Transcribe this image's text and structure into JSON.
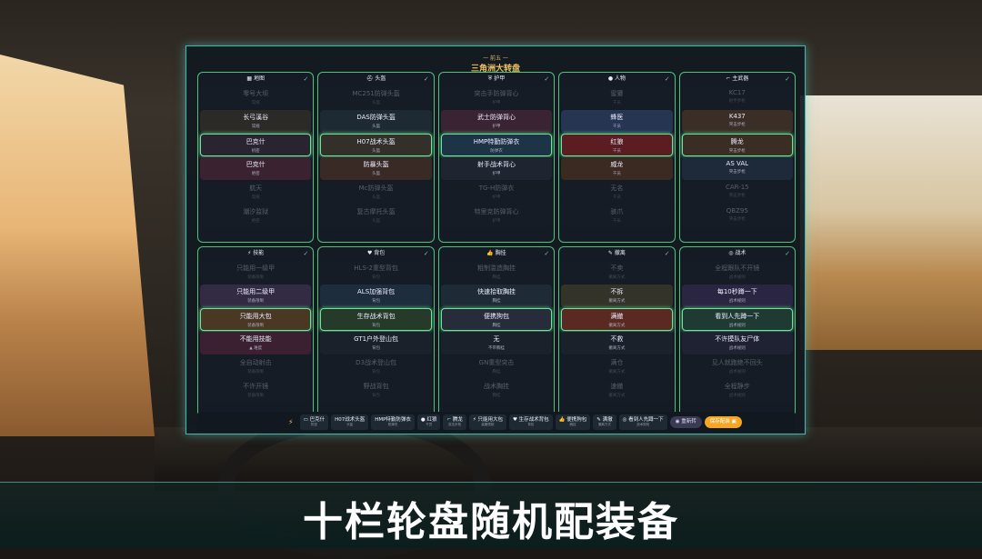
{
  "header": {
    "subtitle": "一 前五 一",
    "title": "三角洲大转盘"
  },
  "columns": [
    {
      "label": "▦ 地图",
      "items": [
        [
          "零号大坝",
          "常规"
        ],
        [
          "长弓溪谷",
          "常规"
        ],
        [
          "巴克什",
          "机密"
        ],
        [
          "巴克什",
          "绝密"
        ],
        [
          "航天",
          "常规"
        ],
        [
          "潮汐监狱",
          "绝密"
        ]
      ],
      "colors": [
        "#1a212b",
        "#2b2a26",
        "#2a2430",
        "#3a2230",
        "#1a212b",
        "#1a212b"
      ]
    },
    {
      "label": "⛑ 头盔",
      "items": [
        [
          "MC251防弹头盔",
          "头盔"
        ],
        [
          "DAS防弹头盔",
          "头盔"
        ],
        [
          "H07战术头盔",
          "头盔"
        ],
        [
          "防暴头盔",
          "头盔"
        ],
        [
          "Mc防弹头盔",
          "头盔"
        ],
        [
          "复古摩托头盔",
          "头盔"
        ]
      ],
      "colors": [
        "#1a212b",
        "#1e2a33",
        "#33302a",
        "#3a2a26",
        "#1a212b",
        "#1a212b"
      ]
    },
    {
      "label": "⛨ 护甲",
      "items": [
        [
          "突击手防弹背心",
          "护甲"
        ],
        [
          "武士防弹背心",
          "护甲"
        ],
        [
          "HMP特勤防弹衣",
          "防弹衣"
        ],
        [
          "射手战术背心",
          "护甲"
        ],
        [
          "TG-H防弹衣",
          "护甲"
        ],
        [
          "特里克防弹背心",
          "护甲"
        ]
      ],
      "colors": [
        "#1a212b",
        "#3a2433",
        "#1d3346",
        "#1e2530",
        "#1a212b",
        "#1a212b"
      ]
    },
    {
      "label": "● 人物",
      "items": [
        [
          "蜜獾",
          "干员"
        ],
        [
          "蜂医",
          "干员"
        ],
        [
          "红狼",
          "干员"
        ],
        [
          "威龙",
          "干员"
        ],
        [
          "无名",
          "干员"
        ],
        [
          "骇爪",
          "干员"
        ]
      ],
      "colors": [
        "#1a212b",
        "#253552",
        "#5a1e22",
        "#3a2a22",
        "#1a212b",
        "#1a212b"
      ]
    },
    {
      "label": "⌐ 主武器",
      "items": [
        [
          "KC17",
          "射手步枪"
        ],
        [
          "K437",
          "突击步枪"
        ],
        [
          "腾龙",
          "突击步枪"
        ],
        [
          "AS VAL",
          "突击步枪"
        ],
        [
          "CAR-15",
          "突击步枪"
        ],
        [
          "QBZ95",
          "突击步枪"
        ]
      ],
      "colors": [
        "#1a212b",
        "#3a2e26",
        "#3a2e24",
        "#1e2a3a",
        "#1a212b",
        "#1a212b"
      ]
    },
    {
      "label": "⚡ 技能",
      "items": [
        [
          "只能用一级甲",
          "装备限制"
        ],
        [
          "只能用二级甲",
          "装备限制"
        ],
        [
          "只能用大包",
          "装备限制"
        ],
        [
          "不能用技能",
          "▲ 难度"
        ],
        [
          "全自动射击",
          "装备限制"
        ],
        [
          "不许开镜",
          "装备限制"
        ]
      ],
      "colors": [
        "#1a212b",
        "#332a44",
        "#4a3824",
        "#3a2030",
        "#1a212b",
        "#1a212b"
      ]
    },
    {
      "label": "♥ 背包",
      "items": [
        [
          "HLS-2重型背包",
          "背包"
        ],
        [
          "ALS加强背包",
          "背包"
        ],
        [
          "生存战术背包",
          "背包"
        ],
        [
          "GT1户外登山包",
          "背包"
        ],
        [
          "D3战术登山包",
          "背包"
        ],
        [
          "野战背包",
          "背包"
        ]
      ],
      "colors": [
        "#1a212b",
        "#1e2d3d",
        "#263a2a",
        "#1a212b",
        "#1a212b",
        "#1a212b"
      ]
    },
    {
      "label": "👍 胸挂",
      "items": [
        [
          "粗制滥造胸挂",
          "胸挂"
        ],
        [
          "快速拾取胸挂",
          "胸挂"
        ],
        [
          "便携狗包",
          "胸挂"
        ],
        [
          "无",
          "不带胸挂"
        ],
        [
          "GN重型突击",
          "胸挂"
        ],
        [
          "战术胸挂",
          "胸挂"
        ]
      ],
      "colors": [
        "#1a212b",
        "#1e2a36",
        "#262c3a",
        "#1a212b",
        "#1a212b",
        "#1a212b"
      ]
    },
    {
      "label": "✎ 撤离",
      "items": [
        [
          "不卖",
          "撤离方式"
        ],
        [
          "不拆",
          "撤离方式"
        ],
        [
          "满撤",
          "撤离方式"
        ],
        [
          "不救",
          "撤离方式"
        ],
        [
          "满仓",
          "撤离方式"
        ],
        [
          "速撤",
          "撤离方式"
        ]
      ],
      "colors": [
        "#1a212b",
        "#33332a",
        "#5a2a22",
        "#1a212b",
        "#1a212b",
        "#1a212b"
      ]
    },
    {
      "label": "◎ 战术",
      "items": [
        [
          "全程跟队不开镜",
          "战术规则"
        ],
        [
          "每10秒蹲一下",
          "战术规则"
        ],
        [
          "看到人先蹲一下",
          "战术规则"
        ],
        [
          "不许摸队友尸体",
          "战术规则"
        ],
        [
          "见人就跑绝不回头",
          "战术规则"
        ],
        [
          "全程静步",
          "战术规则"
        ]
      ],
      "colors": [
        "#1a212b",
        "#2a2540",
        "#1e3a33",
        "#1e2233",
        "#1a212b",
        "#1a212b"
      ]
    }
  ],
  "selected_index": 2,
  "bar": {
    "icon": "⚡",
    "chips": [
      [
        "▭ 巴克什",
        "机密"
      ],
      [
        "H07战术头盔",
        "头盔"
      ],
      [
        "HMP特勤防弹衣",
        "防弹衣"
      ],
      [
        "● 红狼",
        "干员"
      ],
      [
        "⌐ 腾龙",
        "突击步枪"
      ],
      [
        "⚡ 只能用大包",
        "装备限制"
      ],
      [
        "♥ 生存战术背包",
        "背包"
      ],
      [
        "👍 便携狗包",
        "胸挂"
      ],
      [
        "✎ 满撤",
        "撤离方式"
      ],
      [
        "◎ 看到人先蹲一下",
        "战术规则"
      ]
    ],
    "respin": "◉ 重新转",
    "save": "保存配装 ▣"
  },
  "banner": "十栏轮盘随机配装备",
  "colors": {
    "accent": "#4fc37c",
    "panel_border": "#3fb7b0",
    "title": "#f0c060",
    "save_button": "#f5a623"
  }
}
